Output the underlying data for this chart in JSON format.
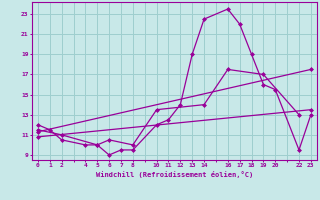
{
  "title": "",
  "xlabel": "Windchill (Refroidissement éolien,°C)",
  "ylabel": "",
  "background_color": "#c8e8e8",
  "grid_color": "#9ecece",
  "line_color": "#990099",
  "xlim": [
    -0.5,
    23.5
  ],
  "ylim": [
    8.5,
    24.2
  ],
  "xticks_shown": [
    0,
    1,
    2,
    4,
    5,
    6,
    7,
    8,
    10,
    11,
    12,
    13,
    14,
    16,
    17,
    18,
    19,
    20,
    22,
    23
  ],
  "yticks": [
    9,
    11,
    13,
    15,
    17,
    19,
    21,
    23
  ],
  "line1_x": [
    0,
    1,
    2,
    4,
    5,
    6,
    7,
    8,
    10,
    11,
    12,
    13,
    14,
    16,
    17,
    18,
    19,
    20,
    22,
    23
  ],
  "line1_y": [
    12.0,
    11.5,
    10.5,
    10.0,
    10.0,
    9.0,
    9.5,
    9.5,
    12.0,
    12.5,
    14.0,
    19.0,
    22.5,
    23.5,
    22.0,
    19.0,
    16.0,
    15.5,
    9.5,
    13.0
  ],
  "line2_x": [
    0,
    2,
    5,
    6,
    8,
    10,
    14,
    16,
    19,
    22
  ],
  "line2_y": [
    11.5,
    11.0,
    10.0,
    10.5,
    10.0,
    13.5,
    14.0,
    17.5,
    17.0,
    13.0
  ],
  "line3_x": [
    0,
    23
  ],
  "line3_y": [
    11.3,
    17.5
  ],
  "line4_x": [
    0,
    23
  ],
  "line4_y": [
    10.8,
    13.5
  ]
}
